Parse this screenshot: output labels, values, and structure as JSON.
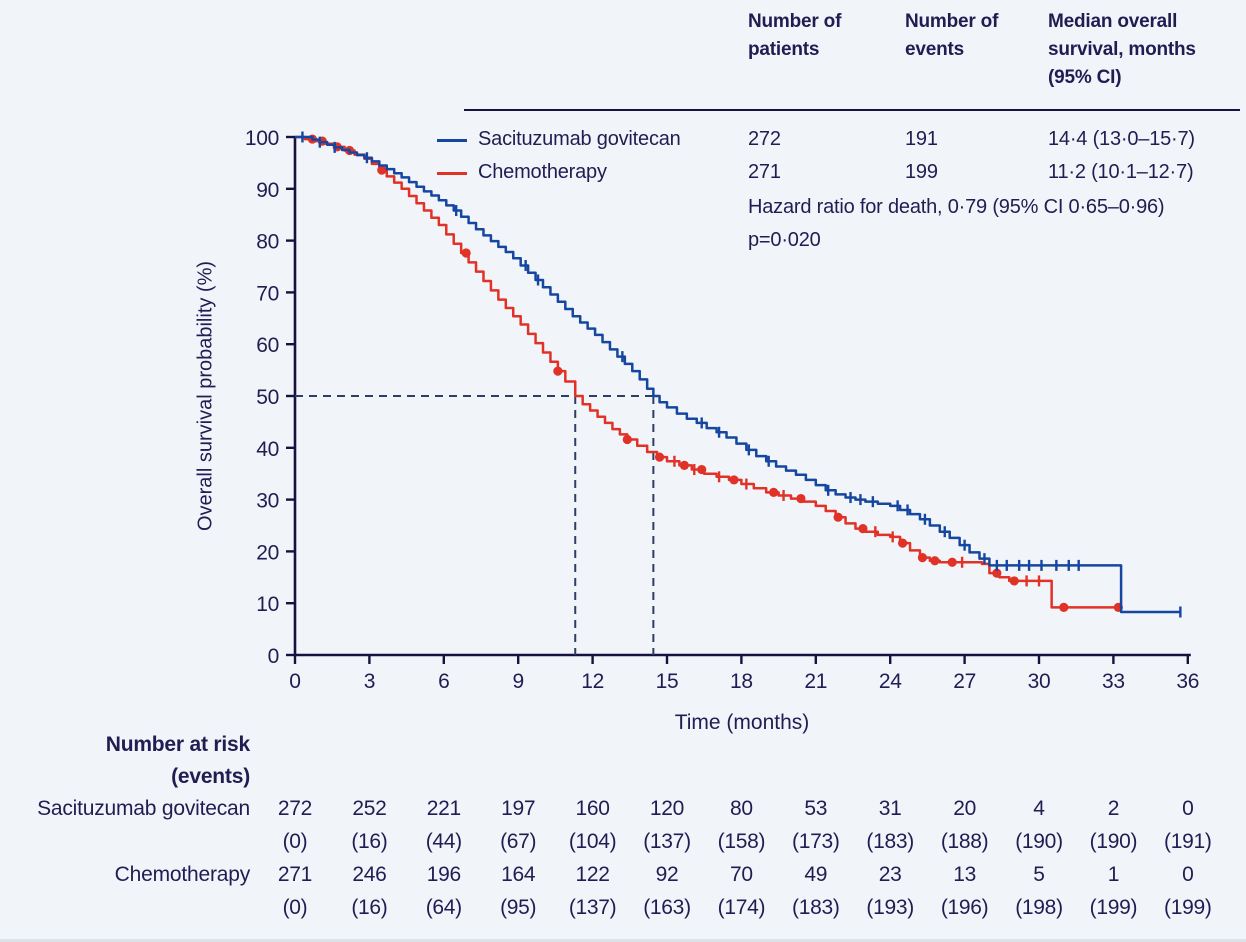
{
  "summary_table": {
    "col_headers": [
      "Number of patients",
      "Number of events",
      "Median overall survival, months (95% CI)"
    ],
    "rows": [
      {
        "label": "Sacituzumab govitecan",
        "patients": "272",
        "events": "191",
        "median": "14·4 (13·0–15·7)"
      },
      {
        "label": "Chemotherapy",
        "patients": "271",
        "events": "199",
        "median": "11·2 (10·1–12·7)"
      }
    ],
    "hazard_line": "Hazard ratio for death, 0·79 (95% CI 0·65–0·96)",
    "p_line": "p=0·020"
  },
  "chart_data": {
    "type": "line",
    "subtype": "kaplan-meier-step",
    "title": "",
    "xlabel": "Time (months)",
    "ylabel": "Overall survival probability (%)",
    "xlim": [
      0,
      36
    ],
    "ylim": [
      0,
      100
    ],
    "x_ticks": [
      0,
      3,
      6,
      9,
      12,
      15,
      18,
      21,
      24,
      27,
      30,
      33,
      36
    ],
    "y_ticks": [
      0,
      10,
      20,
      30,
      40,
      50,
      60,
      70,
      80,
      90,
      100
    ],
    "grid": false,
    "legend_position": "top-left-inside",
    "median_markers": {
      "survival_pct": 50,
      "chemotherapy_months": 11.3,
      "sacituzumab_months": 14.45
    },
    "series": [
      {
        "name": "Sacituzumab govitecan",
        "color_key": "sacituzumab_blue",
        "points": [
          [
            0,
            100
          ],
          [
            0.4,
            100
          ],
          [
            0.7,
            99.5
          ],
          [
            1.0,
            99
          ],
          [
            1.3,
            98.5
          ],
          [
            1.6,
            98
          ],
          [
            1.9,
            97.5
          ],
          [
            2.2,
            97
          ],
          [
            2.5,
            96.5
          ],
          [
            2.8,
            96
          ],
          [
            3.1,
            95.3
          ],
          [
            3.4,
            94.5
          ],
          [
            3.7,
            93.8
          ],
          [
            4.0,
            93
          ],
          [
            4.3,
            92.2
          ],
          [
            4.6,
            91.3
          ],
          [
            4.9,
            90.4
          ],
          [
            5.2,
            89.5
          ],
          [
            5.5,
            88.7
          ],
          [
            5.8,
            87.8
          ],
          [
            6.1,
            86.8
          ],
          [
            6.4,
            85.8
          ],
          [
            6.7,
            84.6
          ],
          [
            7.0,
            83.4
          ],
          [
            7.3,
            82.2
          ],
          [
            7.6,
            81.0
          ],
          [
            7.9,
            79.9
          ],
          [
            8.2,
            78.8
          ],
          [
            8.5,
            77.8
          ],
          [
            8.8,
            76.6
          ],
          [
            9.1,
            75.2
          ],
          [
            9.4,
            73.8
          ],
          [
            9.7,
            72.4
          ],
          [
            10.0,
            71.0
          ],
          [
            10.3,
            69.6
          ],
          [
            10.6,
            68.2
          ],
          [
            10.9,
            66.8
          ],
          [
            11.2,
            65.4
          ],
          [
            11.5,
            64.2
          ],
          [
            11.8,
            63.0
          ],
          [
            12.1,
            61.8
          ],
          [
            12.4,
            60.4
          ],
          [
            12.7,
            59.0
          ],
          [
            13.0,
            57.6
          ],
          [
            13.3,
            56.2
          ],
          [
            13.6,
            54.8
          ],
          [
            13.9,
            53.2
          ],
          [
            14.2,
            51.4
          ],
          [
            14.45,
            50.0
          ],
          [
            14.7,
            48.8
          ],
          [
            15.0,
            47.8
          ],
          [
            15.4,
            46.6
          ],
          [
            15.8,
            45.6
          ],
          [
            16.2,
            44.8
          ],
          [
            16.6,
            43.8
          ],
          [
            17.0,
            43.0
          ],
          [
            17.4,
            42.0
          ],
          [
            17.8,
            40.8
          ],
          [
            18.2,
            39.6
          ],
          [
            18.6,
            38.4
          ],
          [
            19.0,
            37.4
          ],
          [
            19.4,
            36.4
          ],
          [
            19.8,
            35.6
          ],
          [
            20.2,
            34.8
          ],
          [
            20.6,
            33.8
          ],
          [
            21.0,
            32.8
          ],
          [
            21.4,
            31.8
          ],
          [
            21.8,
            31.0
          ],
          [
            22.2,
            30.4
          ],
          [
            22.6,
            30.0
          ],
          [
            23.0,
            29.6
          ],
          [
            23.5,
            29.2
          ],
          [
            24.0,
            28.8
          ],
          [
            24.4,
            28.0
          ],
          [
            24.8,
            27.2
          ],
          [
            25.2,
            26.2
          ],
          [
            25.6,
            25.0
          ],
          [
            26.0,
            23.8
          ],
          [
            26.4,
            22.6
          ],
          [
            26.8,
            21.2
          ],
          [
            27.2,
            19.8
          ],
          [
            27.6,
            18.6
          ],
          [
            28.0,
            17.3
          ],
          [
            33.3,
            17.3
          ],
          [
            33.31,
            8.3
          ],
          [
            35.7,
            8.3
          ]
        ],
        "censor_tick_months": [
          0.3,
          1.0,
          1.6,
          2.9,
          6.5,
          9.3,
          9.8,
          13.2,
          16.4,
          17.1,
          18.3,
          19.1,
          21.5,
          22.4,
          22.8,
          23.3,
          24.3,
          24.7,
          25.4,
          26.2,
          27.0,
          27.8,
          28.3,
          28.7,
          29.2,
          29.6,
          30.1,
          30.7,
          31.2,
          31.6,
          35.7
        ],
        "censor_dot_months": []
      },
      {
        "name": "Chemotherapy",
        "color_key": "chemotherapy_red",
        "points": [
          [
            0,
            100
          ],
          [
            0.4,
            99.6
          ],
          [
            0.8,
            99.2
          ],
          [
            1.2,
            98.7
          ],
          [
            1.6,
            98.1
          ],
          [
            2.0,
            97.4
          ],
          [
            2.4,
            96.6
          ],
          [
            2.8,
            95.8
          ],
          [
            3.1,
            94.8
          ],
          [
            3.4,
            93.6
          ],
          [
            3.7,
            92.4
          ],
          [
            4.0,
            91.2
          ],
          [
            4.3,
            90.0
          ],
          [
            4.6,
            88.6
          ],
          [
            4.9,
            87.2
          ],
          [
            5.2,
            85.8
          ],
          [
            5.5,
            84.4
          ],
          [
            5.8,
            83.0
          ],
          [
            6.1,
            81.2
          ],
          [
            6.4,
            79.4
          ],
          [
            6.7,
            77.6
          ],
          [
            7.0,
            75.8
          ],
          [
            7.3,
            74.0
          ],
          [
            7.6,
            72.2
          ],
          [
            7.9,
            70.4
          ],
          [
            8.2,
            68.6
          ],
          [
            8.5,
            67.0
          ],
          [
            8.8,
            65.4
          ],
          [
            9.1,
            63.8
          ],
          [
            9.4,
            62.0
          ],
          [
            9.7,
            60.2
          ],
          [
            10.0,
            58.4
          ],
          [
            10.3,
            56.6
          ],
          [
            10.6,
            54.8
          ],
          [
            10.9,
            52.8
          ],
          [
            11.3,
            50.0
          ],
          [
            11.6,
            48.4
          ],
          [
            11.9,
            47.2
          ],
          [
            12.2,
            46.0
          ],
          [
            12.5,
            44.8
          ],
          [
            12.8,
            43.6
          ],
          [
            13.1,
            42.6
          ],
          [
            13.4,
            41.6
          ],
          [
            13.8,
            40.4
          ],
          [
            14.2,
            39.2
          ],
          [
            14.6,
            38.2
          ],
          [
            15.0,
            37.4
          ],
          [
            15.5,
            36.6
          ],
          [
            16.0,
            35.8
          ],
          [
            16.5,
            35.0
          ],
          [
            17.0,
            34.4
          ],
          [
            17.5,
            33.8
          ],
          [
            18.0,
            33.0
          ],
          [
            18.5,
            32.2
          ],
          [
            19.0,
            31.4
          ],
          [
            19.5,
            30.8
          ],
          [
            20.0,
            30.2
          ],
          [
            20.5,
            29.6
          ],
          [
            21.0,
            28.8
          ],
          [
            21.4,
            27.8
          ],
          [
            21.8,
            26.6
          ],
          [
            22.2,
            25.4
          ],
          [
            22.6,
            24.4
          ],
          [
            23.0,
            23.8
          ],
          [
            23.5,
            23.2
          ],
          [
            24.0,
            22.8
          ],
          [
            24.4,
            21.6
          ],
          [
            24.8,
            20.2
          ],
          [
            25.2,
            18.8
          ],
          [
            25.6,
            18.2
          ],
          [
            26.0,
            17.9
          ],
          [
            27.7,
            17.6
          ],
          [
            28.0,
            15.8
          ],
          [
            28.4,
            15.0
          ],
          [
            28.8,
            14.3
          ],
          [
            30.5,
            14.3
          ],
          [
            30.51,
            9.2
          ],
          [
            33.3,
            9.2
          ]
        ],
        "censor_tick_months": [
          15.3,
          16.1,
          17.1,
          18.2,
          19.7,
          23.4,
          24.1,
          26.9,
          29.5,
          30.0
        ],
        "censor_dot_months": [
          0.7,
          1.1,
          1.7,
          2.2,
          3.5,
          6.9,
          10.6,
          13.4,
          14.7,
          15.7,
          16.4,
          17.7,
          19.3,
          20.4,
          21.9,
          22.9,
          24.5,
          25.3,
          25.8,
          26.5,
          28.3,
          29.0,
          31.0,
          33.2
        ]
      }
    ]
  },
  "risk_table": {
    "header_line1": "Number at risk",
    "header_line2": "(events)",
    "time_points": [
      0,
      3,
      6,
      9,
      12,
      15,
      18,
      21,
      24,
      27,
      30,
      33,
      36
    ],
    "rows": [
      {
        "label": "Sacituzumab govitecan",
        "at_risk": [
          "272",
          "252",
          "221",
          "197",
          "160",
          "120",
          "80",
          "53",
          "31",
          "20",
          "4",
          "2",
          "0"
        ],
        "events": [
          "(0)",
          "(16)",
          "(44)",
          "(67)",
          "(104)",
          "(137)",
          "(158)",
          "(173)",
          "(183)",
          "(188)",
          "(190)",
          "(190)",
          "(191)"
        ]
      },
      {
        "label": "Chemotherapy",
        "at_risk": [
          "271",
          "246",
          "196",
          "164",
          "122",
          "92",
          "70",
          "49",
          "23",
          "13",
          "5",
          "1",
          "0"
        ],
        "events": [
          "(0)",
          "(16)",
          "(64)",
          "(95)",
          "(137)",
          "(163)",
          "(174)",
          "(183)",
          "(193)",
          "(196)",
          "(198)",
          "(199)",
          "(199)"
        ]
      }
    ]
  },
  "colors": {
    "background": "#f1f4f9",
    "text_navy": "#211d52",
    "axis": "#16123f",
    "sacituzumab_blue": "#1546a0",
    "chemotherapy_red": "#e13228",
    "dashed_line": "#2e3f66"
  }
}
